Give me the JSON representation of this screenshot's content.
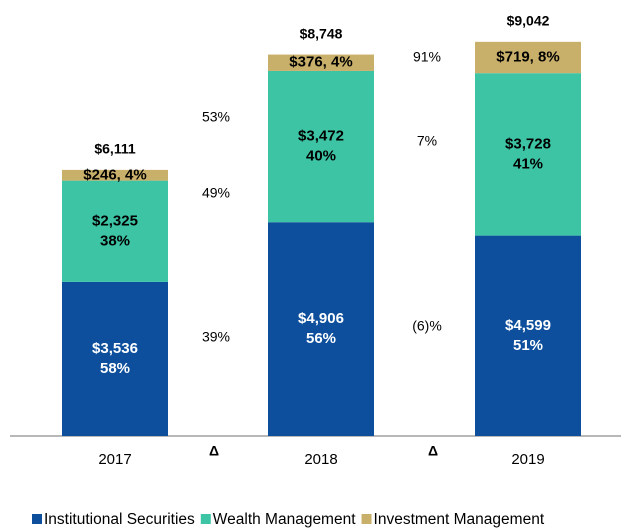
{
  "chart_data": {
    "type": "stacked-bar",
    "categories": [
      "2017",
      "2018",
      "2019"
    ],
    "series": [
      {
        "name": "Institutional Securities",
        "color": "#0d4f9c",
        "values": [
          3536,
          4906,
          4599
        ],
        "value_labels": [
          [
            "$3,536",
            "58%"
          ],
          [
            "$4,906",
            "56%"
          ],
          [
            "$4,599",
            "51%"
          ]
        ],
        "changes": [
          39,
          -6
        ],
        "change_labels": [
          "39%",
          "(6)%"
        ]
      },
      {
        "name": "Wealth Management",
        "color": "#3dc4a5",
        "values": [
          2325,
          3472,
          3728
        ],
        "value_labels": [
          [
            "$2,325",
            "38%"
          ],
          [
            "$3,472",
            "40%"
          ],
          [
            "$3,728",
            "41%"
          ]
        ],
        "changes": [
          49,
          7
        ],
        "change_labels": [
          "49%",
          "7%"
        ]
      },
      {
        "name": "Investment Management",
        "color": "#c9b06a",
        "values": [
          246,
          376,
          719
        ],
        "value_labels": [
          [
            "$246, 4%"
          ],
          [
            "$376, 4%"
          ],
          [
            "$719, 8%"
          ]
        ],
        "changes": [
          53,
          91
        ],
        "change_labels": [
          "53%",
          "91%"
        ]
      }
    ],
    "totals": [
      6111,
      8748,
      9042
    ],
    "total_labels": [
      "$6,111",
      "$8,748",
      "$9,042"
    ],
    "change_header": "Δ"
  }
}
